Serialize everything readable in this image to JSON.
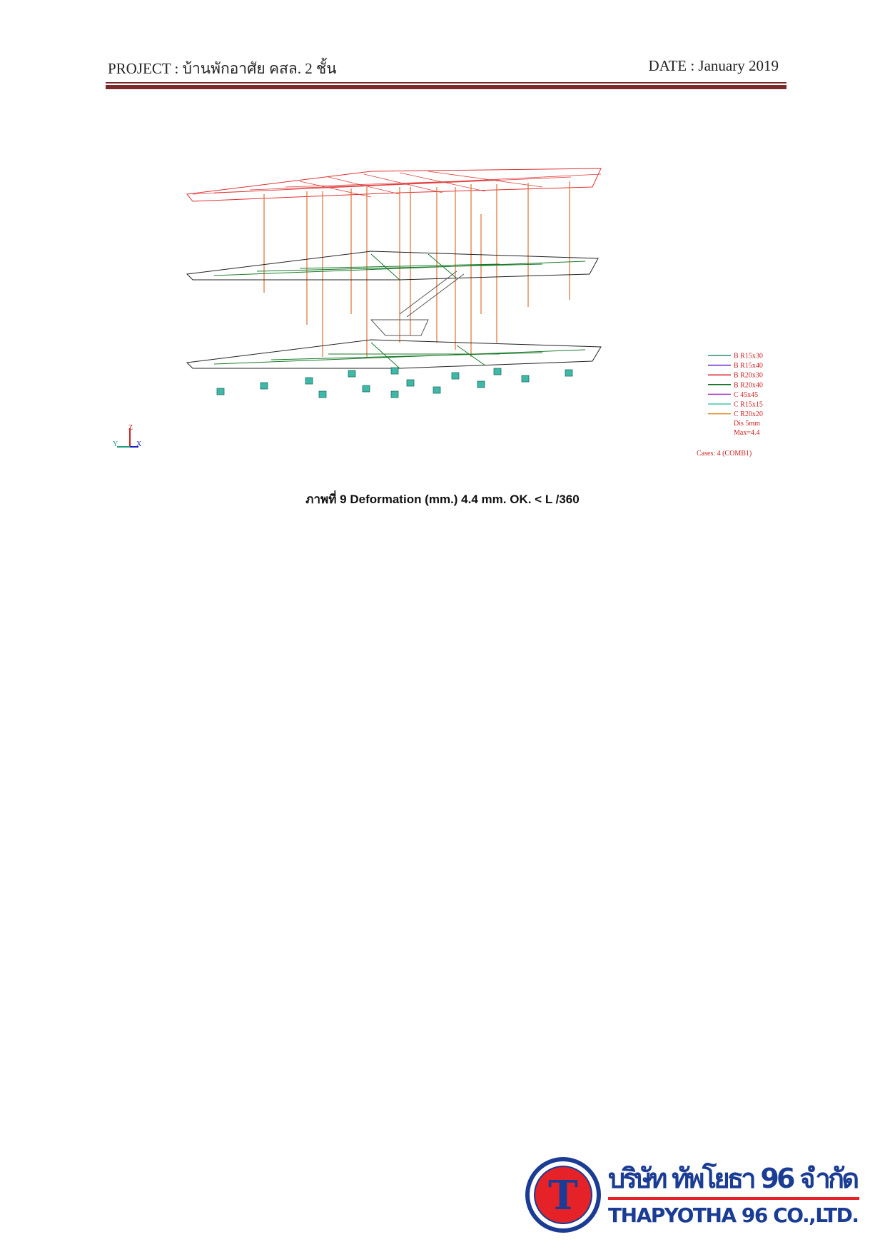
{
  "header": {
    "project": "PROJECT :  บ้านพักอาศัย คสล. 2 ชั้น",
    "date": "DATE : January 2019"
  },
  "figure": {
    "legend": [
      {
        "label": "B R15x30",
        "color": "#2e8b6e"
      },
      {
        "label": "B R15x40",
        "color": "#6a1fd0"
      },
      {
        "label": "B R20x30",
        "color": "#d8202a"
      },
      {
        "label": "B R20x40",
        "color": "#0b6b1e"
      },
      {
        "label": "C 45x45",
        "color": "#a040c0"
      },
      {
        "label": "C R15x15",
        "color": "#40c8a8"
      },
      {
        "label": "C R20x20",
        "color": "#e08a2a"
      }
    ],
    "dis": "Dis  5mm",
    "max": "Max=4.4",
    "cases": "Cases: 4 (COMB1)",
    "axis_z": "Z",
    "axis_x": "X",
    "axis_y": "Y"
  },
  "caption": "ภาพที่ 9 Deformation (mm.) 4.4 mm. OK. < L /360",
  "footer": {
    "logo_letter": "T",
    "company_th": "บริษัท ทัพโยธา 96 จำกัด",
    "company_en": "THAPYOTHA 96 CO.,LTD."
  }
}
